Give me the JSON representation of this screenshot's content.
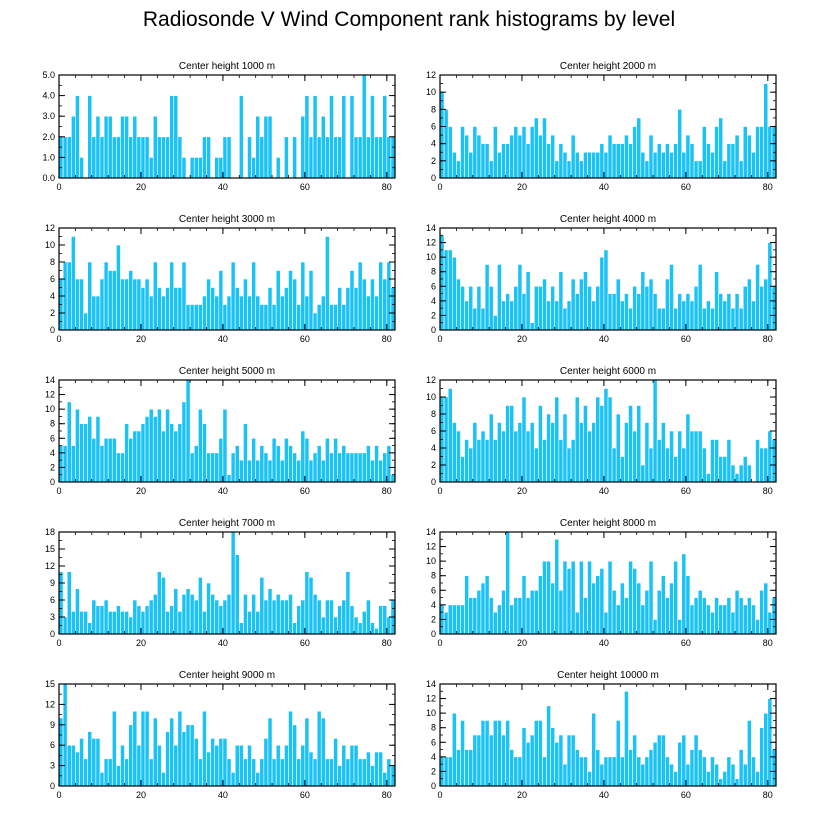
{
  "title": "Radiosonde V Wind Component rank histograms by level",
  "colors": {
    "bar": "#1ac2f5",
    "bar_edge": "#ffffff",
    "axis": "#000000"
  },
  "chart_data": [
    {
      "type": "bar",
      "title": "Center height 1000 m",
      "xlim": [
        0,
        82
      ],
      "ylim": [
        0,
        5
      ],
      "x_ticks": [
        0,
        20,
        40,
        60,
        80
      ],
      "y_ticks": [
        0,
        1,
        2,
        3,
        4,
        5
      ],
      "y_tick_labels": [
        "0.0",
        "1.0",
        "2.0",
        "3.0",
        "4.0",
        "5.0"
      ],
      "values": [
        2,
        2,
        2,
        3,
        4,
        1,
        0,
        4,
        2,
        3,
        2,
        3,
        3,
        2,
        2,
        3,
        3,
        2,
        3,
        2,
        2,
        2,
        1,
        3,
        2,
        2,
        2,
        4,
        4,
        2,
        1,
        0,
        1,
        1,
        1,
        2,
        2,
        0,
        1,
        1,
        2,
        2,
        0,
        0,
        4,
        0,
        2,
        1,
        3,
        2,
        3,
        3,
        0,
        1,
        0,
        2,
        0,
        2,
        0,
        3,
        4,
        2,
        4,
        2,
        3,
        2,
        4,
        2,
        2,
        4,
        0,
        4,
        2,
        2,
        5,
        2,
        4,
        2,
        2,
        4,
        2,
        2
      ]
    },
    {
      "type": "bar",
      "title": "Center height 2000 m",
      "xlim": [
        0,
        82
      ],
      "ylim": [
        0,
        12
      ],
      "x_ticks": [
        0,
        20,
        40,
        60,
        80
      ],
      "y_ticks": [
        0,
        2,
        4,
        6,
        8,
        10,
        12
      ],
      "y_tick_labels": [
        "0",
        "2",
        "4",
        "6",
        "8",
        "10",
        "12"
      ],
      "values": [
        10,
        8,
        6,
        3,
        2,
        6,
        5,
        3,
        6,
        5,
        4,
        4,
        2,
        6,
        3,
        4,
        4,
        5,
        6,
        5,
        6,
        4,
        6,
        7,
        5,
        7,
        4,
        5,
        2,
        4,
        3,
        2,
        5,
        3,
        2,
        3,
        3,
        3,
        3,
        4,
        3,
        5,
        4,
        4,
        4,
        5,
        4,
        6,
        7,
        3,
        2,
        5,
        3,
        4,
        3,
        4,
        3,
        4,
        8,
        3,
        5,
        4,
        2,
        2,
        6,
        4,
        3,
        6,
        7,
        2,
        4,
        4,
        5,
        2,
        6,
        5,
        3,
        6,
        6,
        11,
        6,
        6
      ]
    },
    {
      "type": "bar",
      "title": "Center height 3000 m",
      "xlim": [
        0,
        82
      ],
      "ylim": [
        0,
        12
      ],
      "x_ticks": [
        0,
        20,
        40,
        60,
        80
      ],
      "y_ticks": [
        0,
        2,
        4,
        6,
        8,
        10,
        12
      ],
      "y_tick_labels": [
        "0",
        "2",
        "4",
        "6",
        "8",
        "10",
        "12"
      ],
      "values": [
        6,
        8,
        8,
        11,
        6,
        6,
        2,
        8,
        4,
        4,
        6,
        8,
        7,
        7,
        10,
        6,
        6,
        7,
        6,
        6,
        5,
        6,
        4,
        8,
        5,
        4,
        5,
        8,
        5,
        5,
        8,
        3,
        3,
        3,
        3,
        4,
        6,
        5,
        4,
        7,
        3,
        4,
        8,
        5,
        4,
        6,
        4,
        8,
        4,
        3,
        3,
        5,
        3,
        7,
        4,
        5,
        7,
        6,
        3,
        8,
        4,
        7,
        2,
        3,
        4,
        11,
        3,
        3,
        5,
        3,
        5,
        7,
        5,
        8,
        6,
        4,
        6,
        4,
        8,
        6,
        8,
        5
      ]
    },
    {
      "type": "bar",
      "title": "Center height 4000 m",
      "xlim": [
        0,
        82
      ],
      "ylim": [
        0,
        14
      ],
      "x_ticks": [
        0,
        20,
        40,
        60,
        80
      ],
      "y_ticks": [
        0,
        2,
        4,
        6,
        8,
        10,
        12,
        14
      ],
      "y_tick_labels": [
        "0",
        "2",
        "4",
        "6",
        "8",
        "10",
        "12",
        "14"
      ],
      "values": [
        13,
        11,
        11,
        10,
        7,
        6,
        4,
        6,
        3,
        6,
        3,
        9,
        6,
        2,
        9,
        4,
        5,
        4,
        6,
        9,
        5,
        8,
        1,
        6,
        6,
        7,
        4,
        6,
        4,
        8,
        3,
        4,
        7,
        5,
        7,
        8,
        6,
        4,
        6,
        10,
        11,
        5,
        5,
        7,
        4,
        5,
        3,
        6,
        5,
        8,
        6,
        7,
        5,
        3,
        3,
        7,
        9,
        3,
        5,
        4,
        5,
        4,
        6,
        9,
        3,
        4,
        3,
        8,
        5,
        4,
        5,
        3,
        5,
        3,
        6,
        7,
        4,
        9,
        6,
        7,
        12,
        6
      ]
    },
    {
      "type": "bar",
      "title": "Center height 5000 m",
      "xlim": [
        0,
        82
      ],
      "ylim": [
        0,
        14
      ],
      "x_ticks": [
        0,
        20,
        40,
        60,
        80
      ],
      "y_ticks": [
        0,
        2,
        4,
        6,
        8,
        10,
        12,
        14
      ],
      "y_tick_labels": [
        "0",
        "2",
        "4",
        "6",
        "8",
        "10",
        "12",
        "14"
      ],
      "values": [
        5,
        5,
        11,
        5,
        10,
        8,
        8,
        9,
        6,
        9,
        5,
        6,
        6,
        6,
        4,
        4,
        8,
        6,
        7,
        7,
        8,
        9,
        10,
        9,
        10,
        7,
        10,
        8,
        7,
        8,
        11,
        14,
        4,
        5,
        10,
        8,
        4,
        4,
        4,
        6,
        10,
        1,
        4,
        5,
        3,
        8,
        3,
        6,
        3,
        5,
        4,
        3,
        6,
        5,
        3,
        6,
        5,
        4,
        3,
        7,
        6,
        3,
        4,
        5,
        3,
        6,
        4,
        6,
        4,
        5,
        4,
        4,
        4,
        4,
        4,
        5,
        3,
        5,
        3,
        4,
        5,
        1
      ]
    },
    {
      "type": "bar",
      "title": "Center height 6000 m",
      "xlim": [
        0,
        82
      ],
      "ylim": [
        0,
        12
      ],
      "x_ticks": [
        0,
        20,
        40,
        60,
        80
      ],
      "y_ticks": [
        0,
        2,
        4,
        6,
        8,
        10,
        12
      ],
      "y_tick_labels": [
        "0",
        "2",
        "4",
        "6",
        "8",
        "10",
        "12"
      ],
      "values": [
        10,
        10,
        11,
        7,
        6,
        3,
        5,
        4,
        7,
        5,
        6,
        5,
        8,
        5,
        7,
        6,
        9,
        9,
        6,
        7,
        10,
        6,
        7,
        4,
        9,
        5,
        8,
        7,
        10,
        5,
        8,
        4,
        5,
        10,
        7,
        9,
        6,
        7,
        10,
        9,
        11,
        10,
        4,
        8,
        3,
        7,
        9,
        6,
        9,
        2,
        7,
        4,
        12,
        5,
        7,
        4,
        6,
        3,
        6,
        4,
        8,
        6,
        6,
        6,
        4,
        1,
        5,
        5,
        3,
        3,
        5,
        2,
        1,
        2,
        3,
        2,
        0,
        5,
        4,
        4,
        6,
        5
      ]
    },
    {
      "type": "bar",
      "title": "Center height 7000 m",
      "xlim": [
        0,
        82
      ],
      "ylim": [
        0,
        18
      ],
      "x_ticks": [
        0,
        20,
        40,
        60,
        80
      ],
      "y_ticks": [
        0,
        3,
        6,
        9,
        12,
        15,
        18
      ],
      "y_tick_labels": [
        "0",
        "3",
        "6",
        "9",
        "12",
        "15",
        "18"
      ],
      "values": [
        11,
        3,
        11,
        4,
        8,
        4,
        4,
        2,
        6,
        5,
        5,
        6,
        4,
        4,
        5,
        4,
        4,
        3,
        6,
        5,
        4,
        5,
        6,
        7,
        11,
        10,
        4,
        5,
        8,
        4,
        7,
        8,
        7,
        6,
        10,
        4,
        9,
        7,
        6,
        5,
        6,
        7,
        18,
        14,
        2,
        7,
        4,
        7,
        4,
        10,
        6,
        8,
        6,
        7,
        6,
        6,
        7,
        2,
        5,
        6,
        11,
        10,
        7,
        6,
        3,
        6,
        6,
        3,
        5,
        6,
        11,
        5,
        3,
        2,
        4,
        6,
        2,
        1,
        5,
        5,
        3,
        6
      ]
    },
    {
      "type": "bar",
      "title": "Center height 8000 m",
      "xlim": [
        0,
        82
      ],
      "ylim": [
        0,
        14
      ],
      "x_ticks": [
        0,
        20,
        40,
        60,
        80
      ],
      "y_ticks": [
        0,
        2,
        4,
        6,
        8,
        10,
        12,
        14
      ],
      "y_tick_labels": [
        "0",
        "2",
        "4",
        "6",
        "8",
        "10",
        "12",
        "14"
      ],
      "values": [
        4,
        3,
        4,
        4,
        4,
        4,
        8,
        5,
        5,
        6,
        7,
        8,
        5,
        3,
        4,
        6,
        14,
        4,
        5,
        5,
        8,
        5,
        6,
        6,
        8,
        10,
        10,
        7,
        13,
        6,
        10,
        9,
        10,
        3,
        10,
        5,
        10,
        7,
        8,
        9,
        3,
        10,
        6,
        4,
        7,
        5,
        10,
        9,
        7,
        4,
        6,
        10,
        2,
        6,
        8,
        5,
        7,
        10,
        2,
        11,
        8,
        4,
        5,
        6,
        5,
        4,
        3,
        5,
        4,
        4,
        5,
        3,
        6,
        5,
        4,
        5,
        4,
        2,
        6,
        7,
        3,
        5
      ]
    },
    {
      "type": "bar",
      "title": "Center height 9000 m",
      "xlim": [
        0,
        82
      ],
      "ylim": [
        0,
        15
      ],
      "x_ticks": [
        0,
        20,
        40,
        60,
        80
      ],
      "y_ticks": [
        0,
        3,
        6,
        9,
        12,
        15
      ],
      "y_tick_labels": [
        "0",
        "3",
        "6",
        "9",
        "12",
        "15"
      ],
      "values": [
        10,
        15,
        6,
        6,
        5,
        7,
        4,
        8,
        7,
        7,
        2,
        4,
        4,
        11,
        3,
        6,
        4,
        9,
        11,
        6,
        11,
        11,
        4,
        10,
        6,
        2,
        8,
        10,
        6,
        11,
        8,
        9,
        9,
        7,
        4,
        11,
        5,
        7,
        6,
        7,
        7,
        4,
        2,
        6,
        6,
        4,
        6,
        4,
        2,
        4,
        7,
        10,
        4,
        6,
        4,
        6,
        11,
        9,
        4,
        6,
        10,
        5,
        4,
        11,
        10,
        4,
        4,
        7,
        3,
        6,
        4,
        6,
        6,
        4,
        4,
        5,
        3,
        5,
        5,
        2,
        4,
        3
      ]
    },
    {
      "type": "bar",
      "title": "Center height 10000 m",
      "xlim": [
        0,
        82
      ],
      "ylim": [
        0,
        14
      ],
      "x_ticks": [
        0,
        20,
        40,
        60,
        80
      ],
      "y_ticks": [
        0,
        2,
        4,
        6,
        8,
        10,
        12,
        14
      ],
      "y_tick_labels": [
        "0",
        "2",
        "4",
        "6",
        "8",
        "10",
        "12",
        "14"
      ],
      "values": [
        4,
        4,
        4,
        10,
        5,
        9,
        5,
        5,
        7,
        7,
        9,
        9,
        7,
        9,
        9,
        7,
        9,
        5,
        4,
        4,
        8,
        6,
        7,
        9,
        9,
        4,
        11,
        8,
        6,
        7,
        3,
        7,
        7,
        5,
        4,
        4,
        2,
        10,
        5,
        3,
        4,
        4,
        4,
        9,
        4,
        13,
        5,
        7,
        4,
        3,
        4,
        5,
        6,
        7,
        7,
        4,
        3,
        2,
        6,
        7,
        3,
        5,
        7,
        5,
        4,
        2,
        4,
        3,
        1,
        2,
        4,
        3,
        1,
        5,
        3,
        9,
        4,
        2,
        8,
        10,
        12,
        5
      ]
    }
  ]
}
